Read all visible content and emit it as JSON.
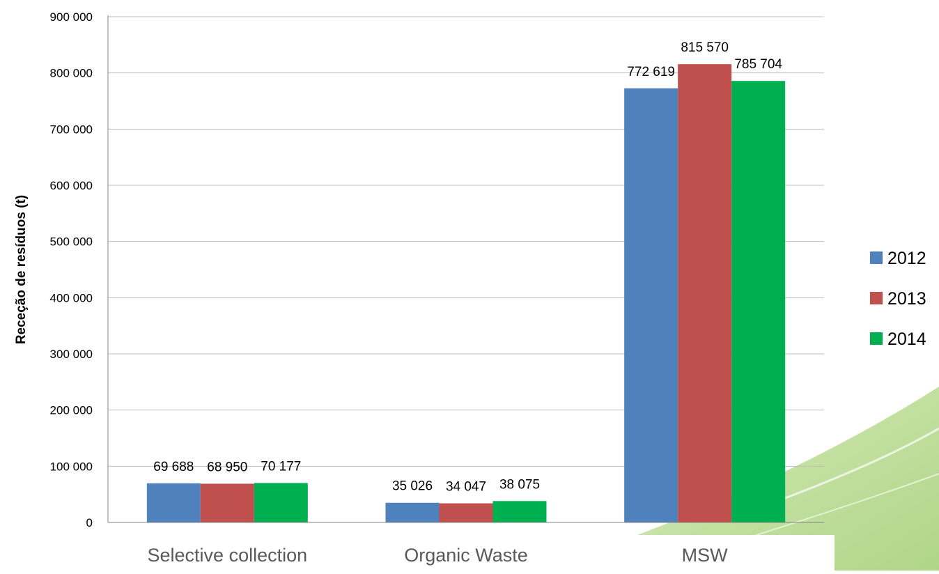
{
  "chart_data": {
    "type": "bar",
    "categories": [
      "Selective collection",
      "Organic Waste",
      "MSW"
    ],
    "series": [
      {
        "name": "2012",
        "color": "#4f81bd",
        "values": [
          69688,
          35026,
          772619
        ]
      },
      {
        "name": "2013",
        "color": "#c0504d",
        "values": [
          68950,
          34047,
          815570
        ]
      },
      {
        "name": "2014",
        "color": "#00b050",
        "values": [
          70177,
          38075,
          785704
        ]
      }
    ],
    "data_labels": [
      [
        "69 688",
        "35 026",
        "772 619"
      ],
      [
        "68 950",
        "34 047",
        "815 570"
      ],
      [
        "70 177",
        "38 075",
        "785 704"
      ]
    ],
    "ylabel": "Receção de resíduos (t)",
    "ylim": [
      0,
      900000
    ],
    "yticks": [
      0,
      100000,
      200000,
      300000,
      400000,
      500000,
      600000,
      700000,
      800000,
      900000
    ],
    "ytick_labels": [
      "0",
      "100 000",
      "200 000",
      "300 000",
      "400 000",
      "500 000",
      "600 000",
      "700 000",
      "800 000",
      "900 000"
    ],
    "grid": true,
    "legend_position": "right"
  }
}
